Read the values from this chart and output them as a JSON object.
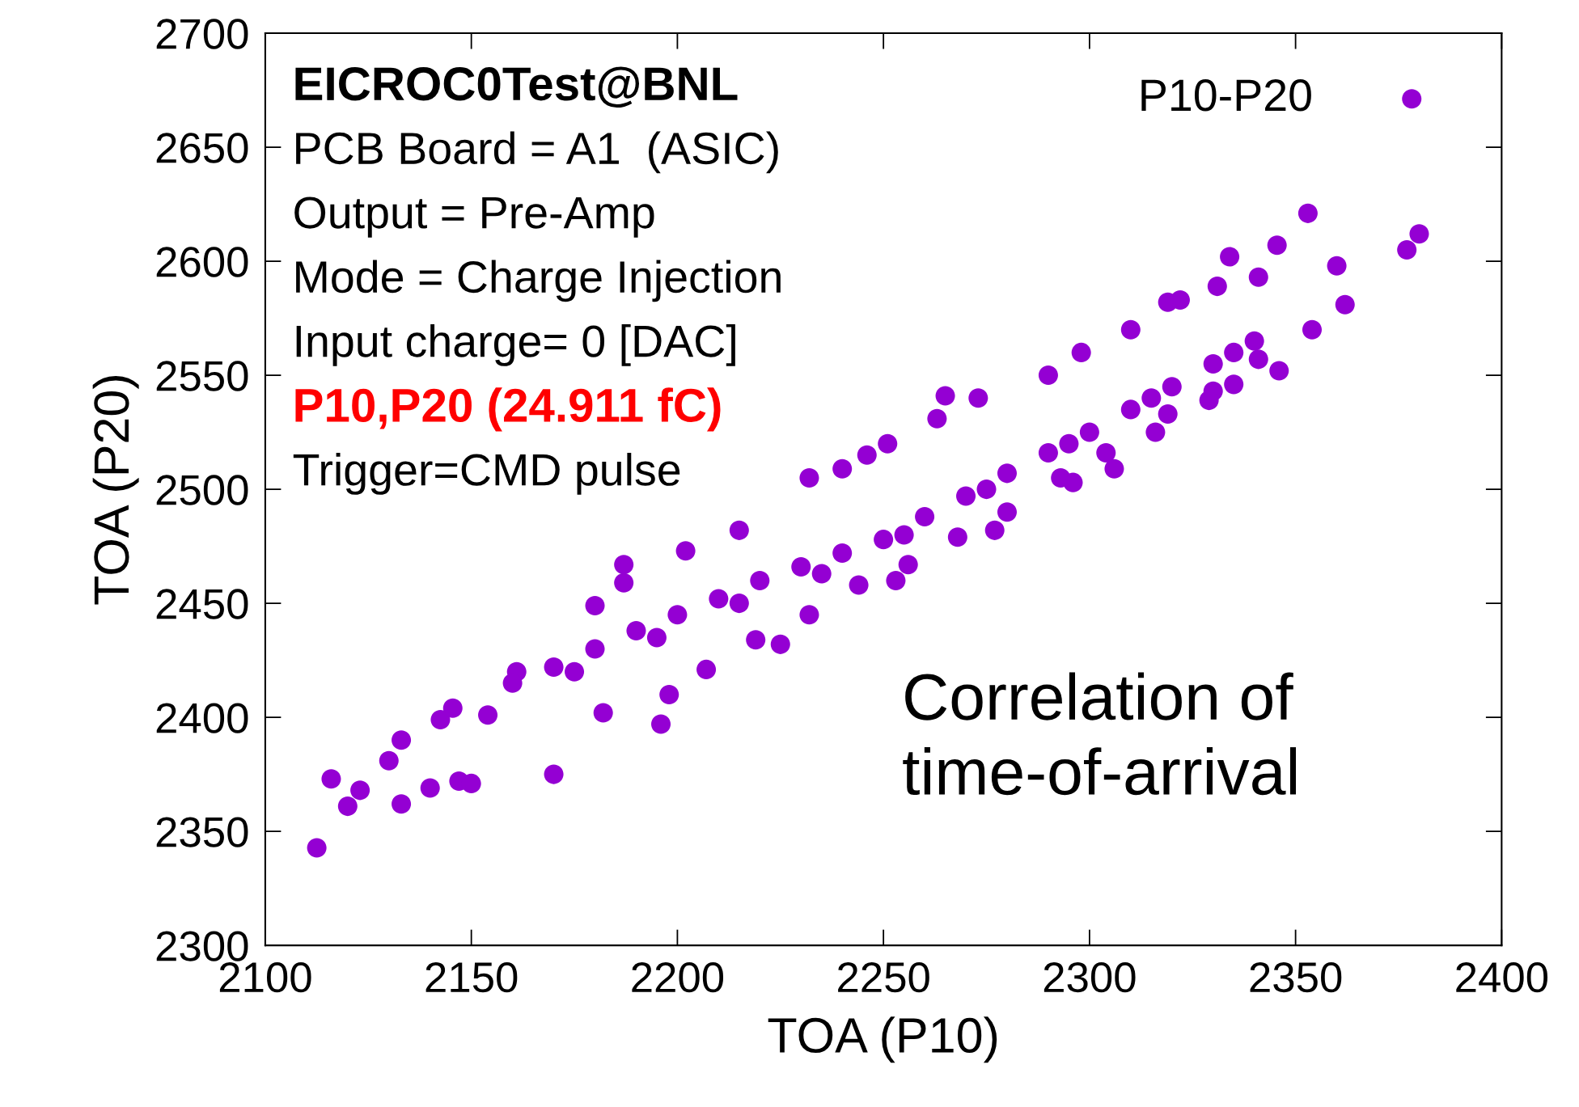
{
  "chart_data": {
    "type": "scatter",
    "xlabel": "TOA (P10)",
    "ylabel": "TOA (P20)",
    "xlim": [
      2100,
      2400
    ],
    "xticks": [
      2100,
      2150,
      2200,
      2250,
      2300,
      2350,
      2400
    ],
    "ylim": [
      2300,
      2700
    ],
    "yticks": [
      2300,
      2350,
      2400,
      2450,
      2500,
      2550,
      2600,
      2650,
      2700
    ],
    "grid": false,
    "legend": "top right",
    "marker": "circle",
    "annotations": [
      "EICROC0Test@BNL",
      "PCB Board = A1  (ASIC)",
      "Output = Pre-Amp",
      "Mode = Charge Injection",
      "Input charge= 0 [DAC]",
      "P10,P20 (24.911 fC)",
      "Trigger=CMD pulse",
      "Correlation of\ntime-of-arrival"
    ],
    "series": [
      {
        "name": "P10-P20",
        "color": "#9400d3",
        "x": [
          2112.5,
          2116,
          2120,
          2123,
          2130,
          2133,
          2133,
          2140,
          2142.5,
          2145.5,
          2147,
          2150,
          2154,
          2161,
          2170,
          2180,
          2187,
          2196,
          2225,
          2232,
          2253,
          2277,
          2265,
          2296,
          2306,
          2319,
          2330,
          2335,
          2346,
          2334,
          2345.5,
          2353,
          2362,
          2360,
          2377,
          2380,
          2240,
          2246,
          2215,
          2202,
          2187,
          2251,
          2263,
          2273,
          2290,
          2298,
          2310,
          2319,
          2322,
          2331,
          2341,
          2182,
          2198,
          2207,
          2219,
          2232,
          2244,
          2256,
          2268,
          2280,
          2293,
          2304,
          2316,
          2329,
          2341,
          2354,
          2160,
          2170,
          2180,
          2190,
          2200,
          2210,
          2220,
          2230,
          2240,
          2250,
          2260,
          2270,
          2280,
          2290,
          2300,
          2310,
          2320,
          2330,
          2340,
          2175,
          2195,
          2215,
          2235,
          2255,
          2275,
          2295,
          2315,
          2335
        ],
        "values": [
          2342.8,
          2373,
          2361,
          2368,
          2381,
          2390,
          2362,
          2369,
          2399,
          2404,
          2372,
          2371,
          2401,
          2420,
          2375,
          2449,
          2467,
          2397,
          2432,
          2505,
          2460,
          2482,
          2541,
          2503,
          2509,
          2533,
          2543,
          2546,
          2552,
          2602,
          2607,
          2621,
          2581,
          2598,
          2605,
          2612,
          2509,
          2515,
          2482,
          2473,
          2459,
          2520,
          2531,
          2540,
          2550,
          2560,
          2570,
          2582,
          2583,
          2589,
          2593,
          2402,
          2410,
          2421,
          2434,
          2445,
          2458,
          2467,
          2479,
          2490,
          2505,
          2516,
          2525,
          2539,
          2557,
          2570,
          2415,
          2422,
          2430,
          2438,
          2445,
          2452,
          2460,
          2466,
          2472,
          2478,
          2488,
          2497,
          2507,
          2516,
          2525,
          2535,
          2545,
          2555,
          2565,
          2420,
          2435,
          2450,
          2463,
          2480,
          2500,
          2520,
          2540,
          2560
        ]
      }
    ]
  }
}
